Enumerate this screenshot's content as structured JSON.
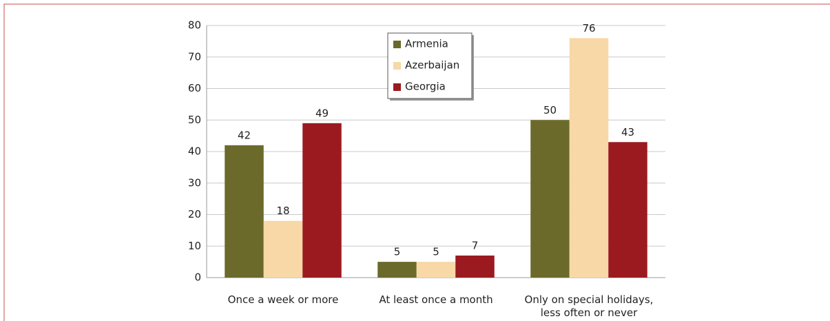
{
  "chart_data": {
    "type": "bar",
    "categories": [
      "Once a week or more",
      "At least once a month",
      "Only on special holidays, less often or never"
    ],
    "series": [
      {
        "name": "Armenia",
        "color": "#6b6a2b",
        "values": [
          42,
          5,
          50
        ]
      },
      {
        "name": "Azerbaijan",
        "color": "#f7d8a6",
        "values": [
          18,
          5,
          76
        ]
      },
      {
        "name": "Georgia",
        "color": "#9b1a20",
        "values": [
          49,
          7,
          43
        ]
      }
    ],
    "ylim": [
      0,
      80
    ],
    "yticks": [
      0,
      10,
      20,
      30,
      40,
      50,
      60,
      70,
      80
    ],
    "grid": true,
    "legend": "top"
  }
}
